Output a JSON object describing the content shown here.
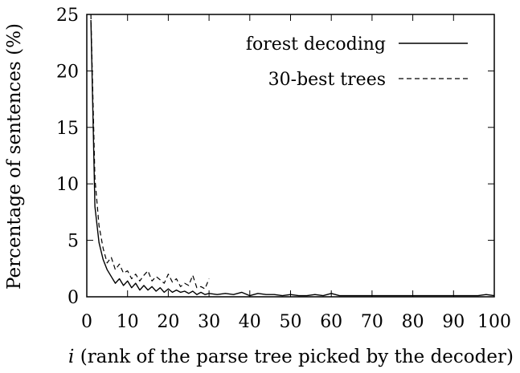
{
  "chart_data": {
    "type": "line",
    "xlabel_italic": "i",
    "xlabel_rest": " (rank of the parse tree picked by the decoder)",
    "ylabel": "Percentage of sentences (%)",
    "xlim": [
      0,
      100
    ],
    "ylim": [
      0,
      25
    ],
    "xticks": [
      0,
      10,
      20,
      30,
      40,
      50,
      60,
      70,
      80,
      90,
      100
    ],
    "yticks": [
      0,
      5,
      10,
      15,
      20,
      25
    ],
    "grid": false,
    "legend_position": "top-right",
    "series": [
      {
        "name": "forest decoding",
        "style": "solid",
        "color": "#000000",
        "x": [
          1,
          2,
          3,
          4,
          5,
          6,
          7,
          8,
          9,
          10,
          11,
          12,
          13,
          14,
          15,
          16,
          17,
          18,
          19,
          20,
          21,
          22,
          23,
          24,
          25,
          26,
          27,
          28,
          29,
          30,
          32,
          34,
          36,
          38,
          40,
          42,
          44,
          46,
          48,
          50,
          52,
          54,
          56,
          58,
          60,
          62,
          64,
          66,
          68,
          70,
          72,
          74,
          76,
          78,
          80,
          82,
          84,
          86,
          88,
          90,
          92,
          94,
          96,
          98,
          100
        ],
        "y": [
          24.5,
          8.0,
          4.8,
          3.3,
          2.4,
          1.8,
          1.2,
          1.6,
          1.0,
          1.4,
          0.8,
          1.2,
          0.6,
          1.0,
          0.6,
          0.9,
          0.5,
          0.8,
          0.4,
          0.7,
          0.4,
          0.6,
          0.4,
          0.5,
          0.3,
          0.5,
          0.2,
          0.4,
          0.2,
          0.3,
          0.2,
          0.3,
          0.2,
          0.4,
          0.1,
          0.3,
          0.2,
          0.2,
          0.1,
          0.2,
          0.1,
          0.1,
          0.2,
          0.1,
          0.3,
          0.1,
          0.1,
          0.1,
          0.1,
          0.1,
          0.1,
          0.1,
          0.1,
          0.1,
          0.1,
          0.1,
          0.1,
          0.1,
          0.1,
          0.1,
          0.1,
          0.1,
          0.1,
          0.2,
          0.1
        ]
      },
      {
        "name": "30-best trees",
        "style": "dashed",
        "color": "#000000",
        "x": [
          1,
          2,
          3,
          4,
          5,
          6,
          7,
          8,
          9,
          10,
          11,
          12,
          13,
          14,
          15,
          16,
          17,
          18,
          19,
          20,
          21,
          22,
          23,
          24,
          25,
          26,
          27,
          28,
          29,
          30
        ],
        "y": [
          25.0,
          10.5,
          6.3,
          4.3,
          3.0,
          3.5,
          2.4,
          2.9,
          2.1,
          2.3,
          1.6,
          2.0,
          1.4,
          1.9,
          2.3,
          1.4,
          1.8,
          1.5,
          1.2,
          2.0,
          1.3,
          1.6,
          0.9,
          1.2,
          1.0,
          1.9,
          0.8,
          0.9,
          0.7,
          1.6
        ]
      }
    ]
  }
}
